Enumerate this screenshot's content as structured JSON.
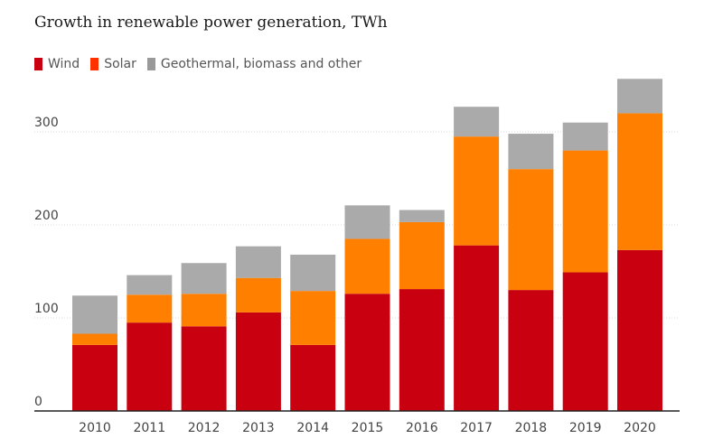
{
  "chart_data": {
    "type": "bar",
    "stacked": true,
    "title": "Growth in renewable power generation, TWh",
    "xlabel": "",
    "ylabel": "",
    "ylim": [
      0,
      360
    ],
    "yticks": [
      0,
      100,
      200,
      300
    ],
    "categories": [
      "2010",
      "2011",
      "2012",
      "2013",
      "2014",
      "2015",
      "2016",
      "2017",
      "2018",
      "2019",
      "2020"
    ],
    "series": [
      {
        "name": "Wind",
        "color": "#c8000f",
        "values": [
          71,
          95,
          91,
          106,
          71,
          126,
          131,
          178,
          130,
          149,
          173
        ]
      },
      {
        "name": "Solar",
        "color": "#ff7f00",
        "values": [
          12,
          30,
          35,
          37,
          58,
          59,
          72,
          117,
          130,
          131,
          147
        ]
      },
      {
        "name": "Geothermal, biomass and other",
        "color": "#aaaaaa",
        "values": [
          41,
          21,
          33,
          34,
          39,
          36,
          13,
          32,
          38,
          30,
          37
        ]
      }
    ],
    "legend_position": "top-left",
    "grid": true
  }
}
